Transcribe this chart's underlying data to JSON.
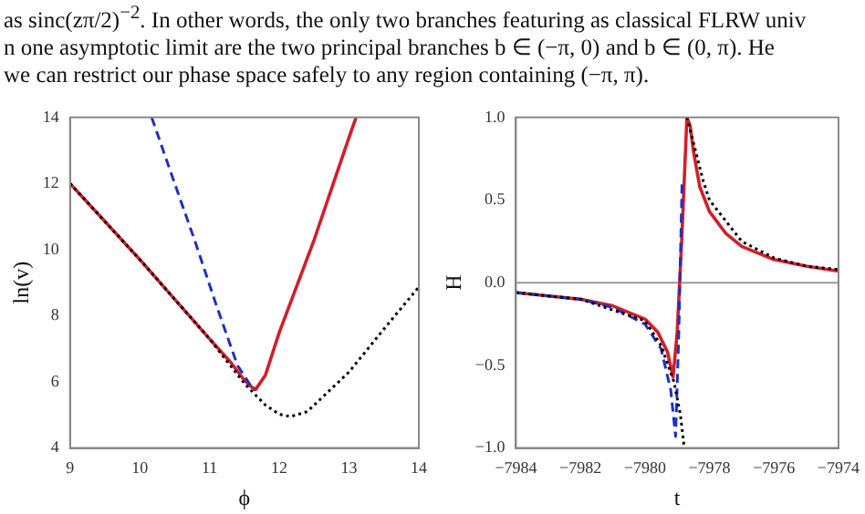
{
  "chart_data": [
    {
      "type": "line",
      "xlabel": "ϕ",
      "ylabel": "ln(v)",
      "xlim": [
        9,
        14
      ],
      "ylim": [
        4,
        14
      ],
      "xticks": [
        9,
        10,
        11,
        12,
        13,
        14
      ],
      "yticks": [
        4,
        6,
        8,
        10,
        12,
        14
      ],
      "grid": false,
      "legend": false,
      "marker": "none",
      "annotations": [
        "as sinc(zπ/2)$^{−2}$. In other words, the only two branches featuring as classical FLRW univ",
        "n one asymptotic limit are the two principal branches b ∈ (−π, 0) and b ∈ (0, π). He",
        "we can restrict our phase space safely to any region containing (−π, π)."
      ],
      "series": [
        {
          "color": "#000000",
          "line_style": "dotted",
          "x": [
            9,
            10,
            11,
            11.5,
            11.8,
            12,
            12.16,
            12.4,
            13,
            13.5,
            14
          ],
          "values": [
            12,
            9.7,
            7.3,
            5.95,
            5.3,
            5.02,
            4.95,
            5.1,
            6.3,
            7.6,
            8.87
          ]
        },
        {
          "color": "#2030c0",
          "line_style": "dashed",
          "x": [
            10.17,
            10.5,
            10.8,
            11.1,
            11.4,
            11.6,
            11.65
          ],
          "values": [
            14,
            12,
            10.2,
            8.3,
            6.5,
            5.85,
            5.75
          ]
        },
        {
          "color": "#d0202a",
          "line_style": "solid",
          "x": [
            9,
            9.5,
            10,
            10.5,
            11,
            11.3,
            11.5,
            11.6,
            11.66,
            11.8,
            12,
            12.5,
            13,
            13.1
          ],
          "values": [
            12,
            10.85,
            9.7,
            8.5,
            7.3,
            6.6,
            6.05,
            5.85,
            5.77,
            6.2,
            7.5,
            10.3,
            13.4,
            14
          ]
        }
      ]
    },
    {
      "type": "line",
      "xlabel": "t",
      "ylabel": "H",
      "xlim": [
        -7984,
        -7974
      ],
      "ylim": [
        -1,
        1
      ],
      "grid": false,
      "legend": false,
      "marker": "none",
      "xticks": [
        {
          "value": -7984,
          "label": "−7984"
        },
        {
          "value": -7982,
          "label": "−7982"
        },
        {
          "value": -7980,
          "label": "−7980"
        },
        {
          "value": -7978,
          "label": "−7978"
        },
        {
          "value": -7976,
          "label": "−7976"
        },
        {
          "value": -7974,
          "label": "−7974"
        }
      ],
      "yticks": [
        {
          "value": -1,
          "label": "−1.0"
        },
        {
          "value": -0.5,
          "label": "−0.5"
        },
        {
          "value": 0,
          "label": "0.0"
        },
        {
          "value": 0.5,
          "label": "0.5"
        },
        {
          "value": 1,
          "label": "1.0"
        }
      ],
      "ref_lines": [
        {
          "axis": "y",
          "value": 0,
          "color": "#999999"
        }
      ],
      "series": [
        {
          "color": "#000000",
          "line_style": "dotted",
          "x": [
            -7984,
            -7982,
            -7980,
            -7979.5,
            -7979.1,
            -7978.9,
            -7978.78,
            -7978.74,
            -7978.7,
            -7978.5,
            -7978.2,
            -7978,
            -7977,
            -7976,
            -7975,
            -7974
          ],
          "values": [
            -0.06,
            -0.1,
            -0.23,
            -0.38,
            -0.6,
            -0.8,
            -1,
            null,
            1,
            0.85,
            0.62,
            0.5,
            0.25,
            0.15,
            0.1,
            0.08
          ]
        },
        {
          "color": "#2030c0",
          "line_style": "dashed",
          "x": [
            -7984,
            -7982,
            -7981,
            -7980,
            -7979.5,
            -7979.2,
            -7979.05,
            -7978.95,
            -7978.85
          ],
          "values": [
            -0.06,
            -0.1,
            -0.15,
            -0.25,
            -0.4,
            -0.65,
            -0.93,
            -0.3,
            0.6
          ]
        },
        {
          "color": "#d0202a",
          "line_style": "solid",
          "x": [
            -7984,
            -7983,
            -7982,
            -7981,
            -7980,
            -7979.6,
            -7979.3,
            -7979.13,
            -7979,
            -7978.85,
            -7978.7,
            -7978.6,
            -7978.5,
            -7978.3,
            -7978,
            -7977.5,
            -7977,
            -7976,
            -7975,
            -7974
          ],
          "values": [
            -0.06,
            -0.08,
            -0.1,
            -0.14,
            -0.22,
            -0.3,
            -0.42,
            -0.57,
            -0.3,
            0.3,
            1,
            0.95,
            0.8,
            0.58,
            0.43,
            0.3,
            0.22,
            0.14,
            0.1,
            0.07
          ]
        }
      ]
    }
  ]
}
